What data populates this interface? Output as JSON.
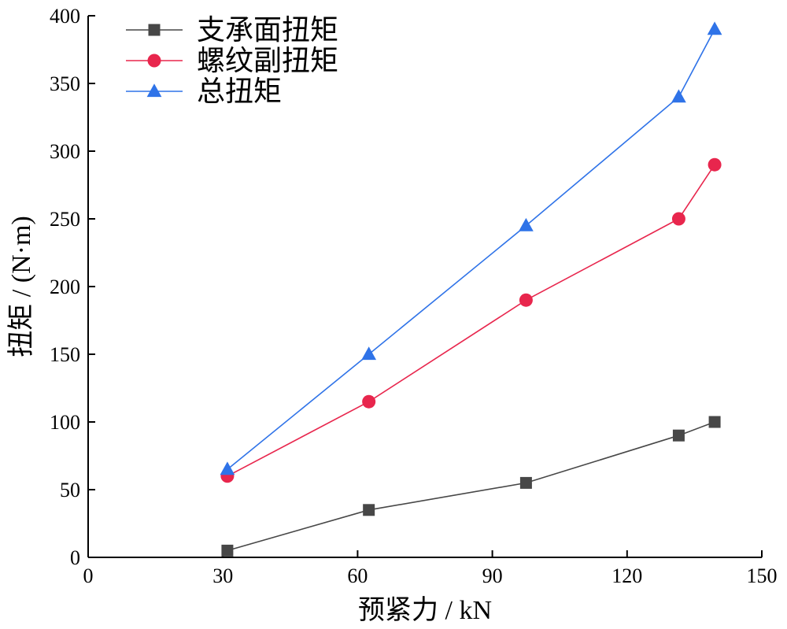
{
  "chart_data": {
    "type": "line",
    "title": "",
    "xlabel": "预紧力 / kN",
    "ylabel": "扭矩 / (N·m)",
    "xlim": [
      0,
      150
    ],
    "ylim": [
      0,
      400
    ],
    "xticks": [
      0,
      30,
      60,
      90,
      120,
      150
    ],
    "yticks": [
      0,
      50,
      100,
      150,
      200,
      250,
      300,
      350,
      400
    ],
    "x": [
      31,
      62.5,
      97.5,
      131.5,
      139.5
    ],
    "grid": false,
    "legend_position": "top-left",
    "series": [
      {
        "name": "支承面扭矩",
        "marker": "square",
        "color": "#474747",
        "values": [
          5,
          35,
          55,
          90,
          100
        ]
      },
      {
        "name": "螺纹副扭矩",
        "marker": "circle",
        "color": "#e8264d",
        "values": [
          60,
          115,
          190,
          250,
          290
        ]
      },
      {
        "name": "总扭矩",
        "marker": "triangle",
        "color": "#2f73e8",
        "values": [
          65,
          150,
          245,
          340,
          390
        ]
      }
    ]
  }
}
